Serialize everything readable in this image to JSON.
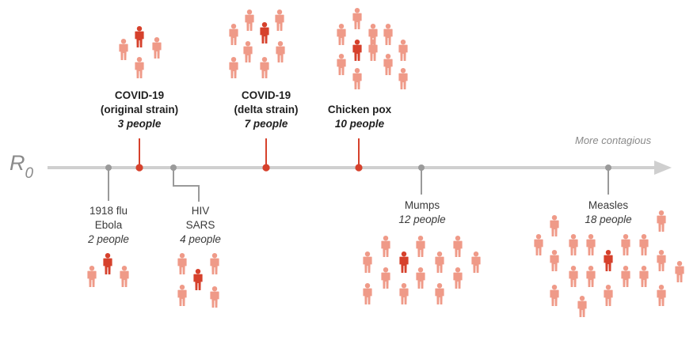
{
  "colors": {
    "axis": "#cfcfcf",
    "neutral_stem": "#9a9a9a",
    "highlight_stem": "#d6412c",
    "person_light": "#ef9a88",
    "person_dark": "#d6412c"
  },
  "axis": {
    "symbol": "R",
    "subscript": "0",
    "direction_label": "More contagious"
  },
  "diseases": [
    {
      "name_lines": [
        "1918 flu",
        "Ebola"
      ],
      "count_text": "2 people",
      "r0": 2,
      "highlighted": false,
      "label_side": "below"
    },
    {
      "name_lines": [
        "COVID-19",
        "(original strain)"
      ],
      "count_text": "3 people",
      "r0": 3,
      "highlighted": true,
      "label_side": "above"
    },
    {
      "name_lines": [
        "HIV",
        "SARS"
      ],
      "count_text": "4 people",
      "r0": 4,
      "highlighted": false,
      "label_side": "below"
    },
    {
      "name_lines": [
        "COVID-19",
        "(delta strain)"
      ],
      "count_text": "7 people",
      "r0": 7,
      "highlighted": true,
      "label_side": "above"
    },
    {
      "name_lines": [
        "Chicken pox"
      ],
      "count_text": "10 people",
      "r0": 10,
      "highlighted": true,
      "label_side": "above"
    },
    {
      "name_lines": [
        "Mumps"
      ],
      "count_text": "12 people",
      "r0": 12,
      "highlighted": false,
      "label_side": "below"
    },
    {
      "name_lines": [
        "Measles"
      ],
      "count_text": "18 people",
      "r0": 18,
      "highlighted": false,
      "label_side": "below"
    }
  ]
}
